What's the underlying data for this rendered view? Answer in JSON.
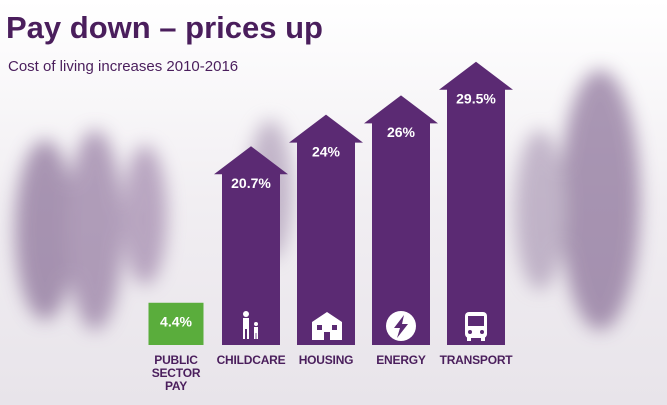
{
  "chart_data": {
    "type": "bar",
    "title": "Pay down – prices up",
    "subtitle": "Cost of living increases 2010-2016",
    "categories": [
      "PUBLIC SECTOR PAY",
      "CHILDCARE",
      "HOUSING",
      "ENERGY",
      "TRANSPORT"
    ],
    "values": [
      4.4,
      20.7,
      24,
      26,
      29.5
    ],
    "value_labels": [
      "4.4%",
      "20.7%",
      "24%",
      "26%",
      "29.5%"
    ],
    "colors": [
      "#5aad3c",
      "#5b2a73",
      "#5b2a73",
      "#5b2a73",
      "#5b2a73"
    ],
    "ylim": [
      0,
      30
    ]
  }
}
